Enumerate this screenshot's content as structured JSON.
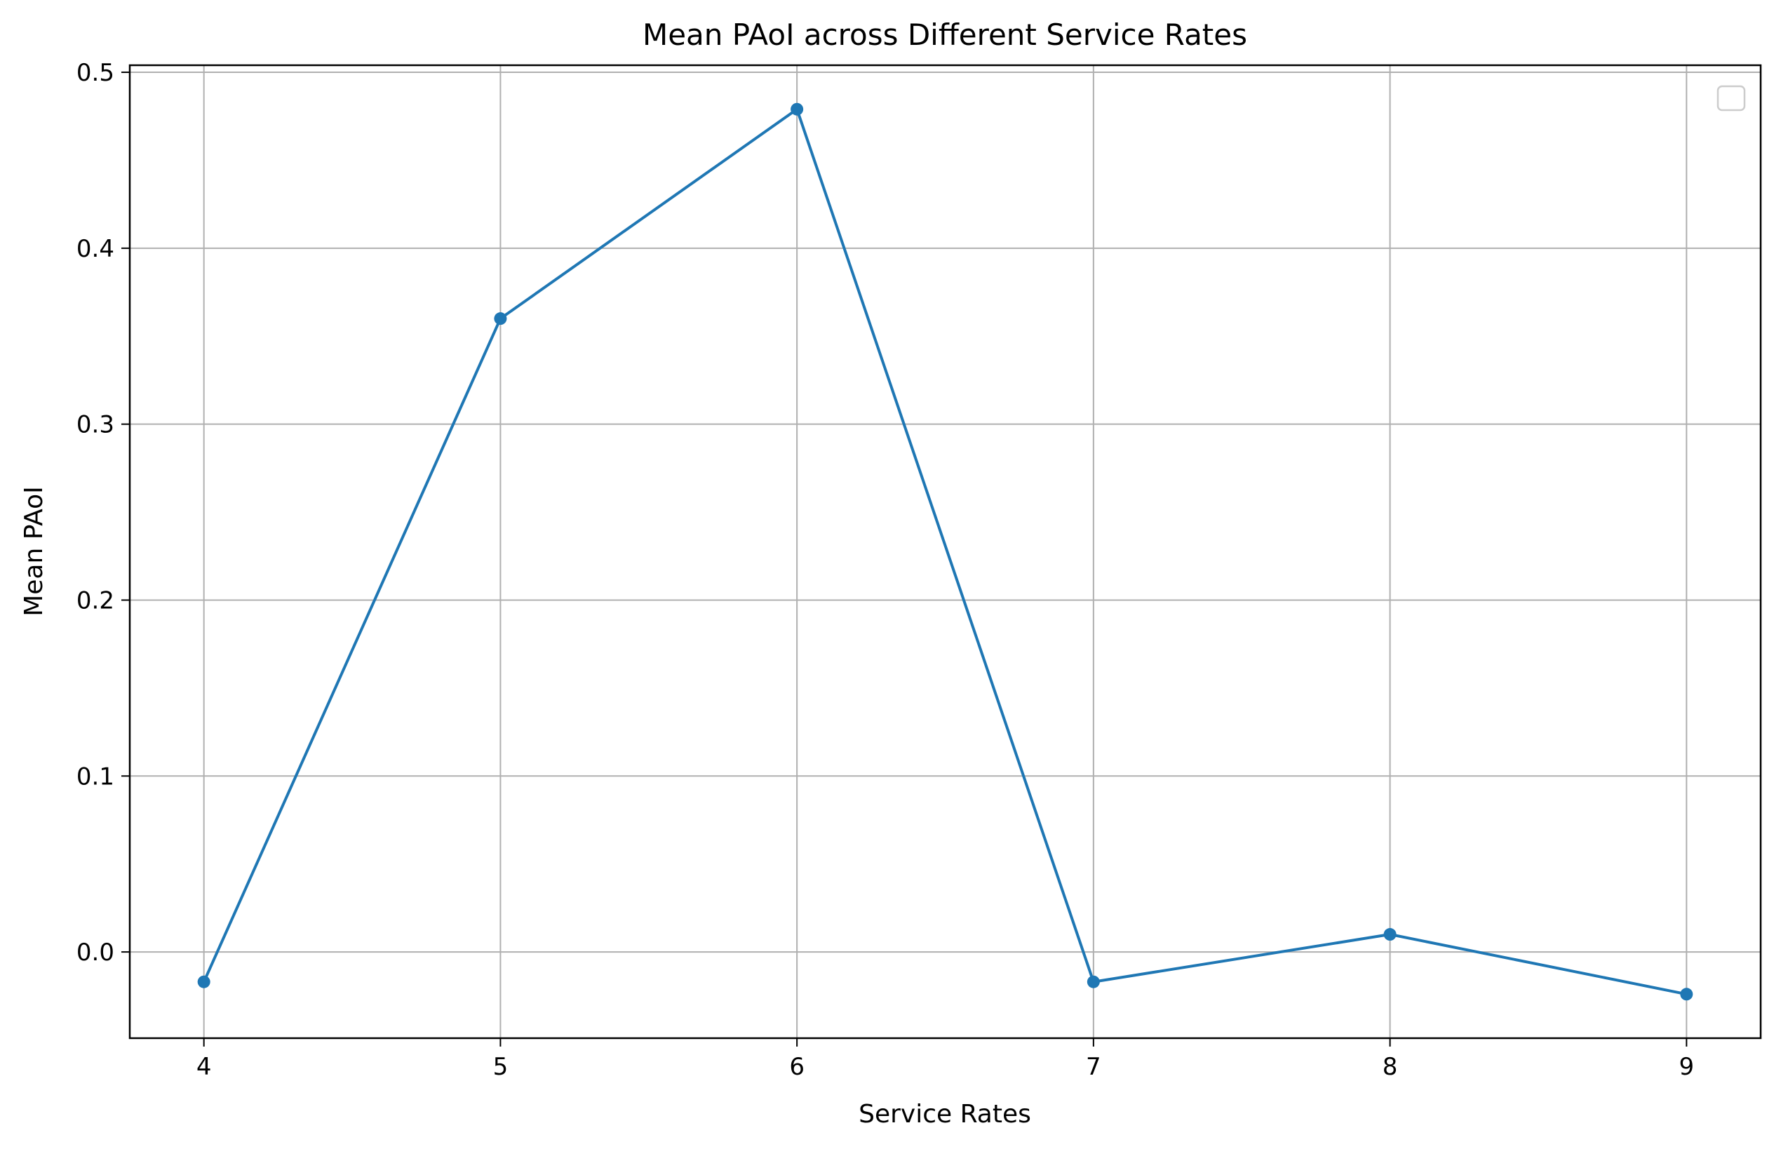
{
  "chart_data": {
    "type": "line",
    "title": "Mean PAoI across Different Service Rates",
    "xlabel": "Service Rates",
    "ylabel": "Mean PAoI",
    "x": [
      4,
      5,
      6,
      7,
      8,
      9
    ],
    "xticks": [
      "4",
      "5",
      "6",
      "7",
      "8",
      "9"
    ],
    "yticks": [
      "0.0",
      "0.1",
      "0.2",
      "0.3",
      "0.4",
      "0.5"
    ],
    "xlim": [
      3.75,
      9.25
    ],
    "ylim": [
      -0.049,
      0.504
    ],
    "grid": true,
    "legend": "top-right, empty",
    "series": [
      {
        "values": [
          -0.017,
          0.36,
          0.479,
          -0.017,
          0.01,
          -0.024
        ],
        "color": "#1f77b4",
        "marker": "circle"
      }
    ]
  }
}
